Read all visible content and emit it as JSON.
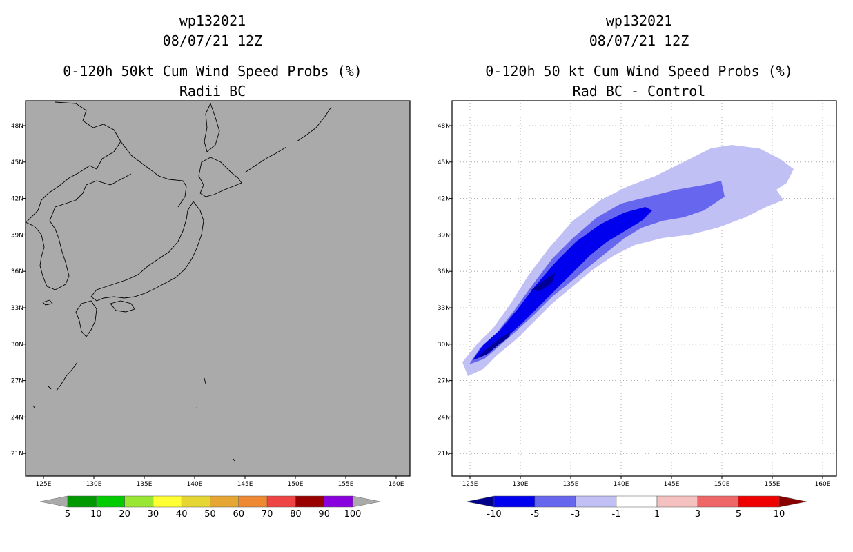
{
  "left_panel": {
    "storm_id": "wp132021",
    "datetime": "08/07/21 12Z",
    "product": "0-120h 50kt Cum Wind Speed Probs (%)",
    "subtitle": "Radii BC",
    "background_color": "#aaaaaa",
    "colorbar": {
      "labels": [
        "5",
        "10",
        "20",
        "30",
        "40",
        "50",
        "60",
        "70",
        "80",
        "90",
        "100"
      ],
      "colors": [
        "#009900",
        "#00cc00",
        "#99e633",
        "#ffff33",
        "#e6d633",
        "#e6a633",
        "#ee8833",
        "#ee4444",
        "#990000",
        "#8800dd"
      ],
      "ends": [
        "#aaaaaa",
        "#aaaaaa"
      ]
    }
  },
  "right_panel": {
    "storm_id": "wp132021",
    "datetime": "08/07/21 12Z",
    "product": "0-120h 50 kt Cum Wind Speed Probs (%)",
    "subtitle": "Rad BC - Control",
    "background_color": "#ffffff",
    "colorbar": {
      "labels": [
        "-10",
        "-5",
        "-3",
        "-1",
        "1",
        "3",
        "5",
        "10"
      ],
      "colors": [
        "#0000ee",
        "#6666ee",
        "#c0c0f5",
        "#ffffff",
        "#f5c0c0",
        "#ee6666",
        "#ee0000"
      ],
      "ends": [
        "#000088",
        "#880000"
      ]
    }
  },
  "axes": {
    "lon_labels": [
      "125E",
      "130E",
      "135E",
      "140E",
      "145E",
      "150E",
      "155E",
      "160E"
    ],
    "lat_labels": [
      "48N",
      "45N",
      "42N",
      "39N",
      "36N",
      "33N",
      "30N",
      "27N",
      "24N",
      "21N"
    ],
    "lon_values": [
      125,
      130,
      135,
      140,
      145,
      150,
      155,
      160
    ],
    "lat_values": [
      48,
      45,
      42,
      39,
      36,
      33,
      30,
      27,
      24,
      21
    ]
  }
}
